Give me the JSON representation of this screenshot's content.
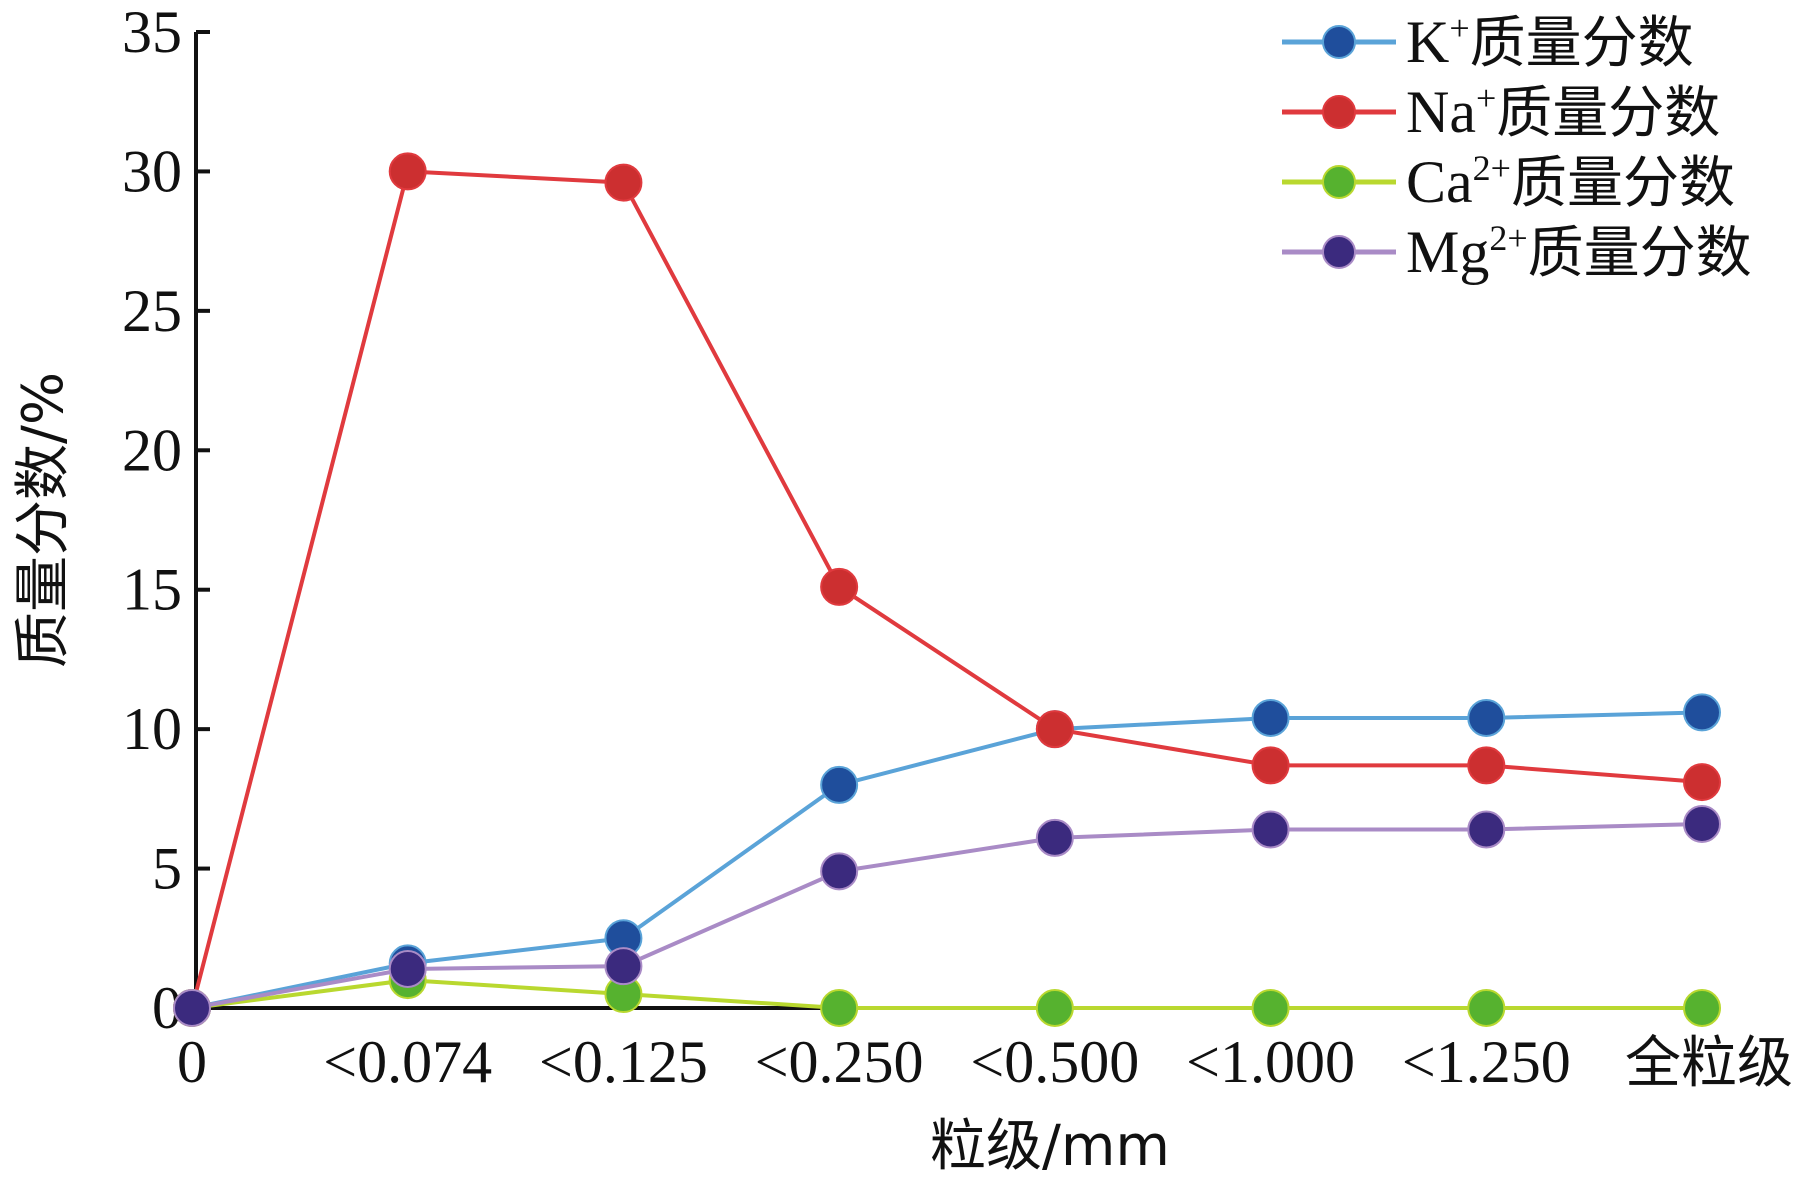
{
  "chart_data": {
    "type": "line",
    "title": "",
    "xlabel": "粒级/mm",
    "ylabel": "质量分数/%",
    "categories": [
      "0",
      "<0.074",
      "<0.125",
      "<0.250",
      "<0.500",
      "<1.000",
      "<1.250",
      "全粒级"
    ],
    "ylim": [
      0,
      35
    ],
    "yticks": [
      "0",
      "5",
      "10",
      "15",
      "20",
      "25",
      "30",
      "35"
    ],
    "grid": false,
    "legend_position": "top-right",
    "series": [
      {
        "name_base": "K",
        "name_sup": "+",
        "name_suffix": "质量分数",
        "color": "#5aa3d8",
        "marker_color": "#1f4e9c",
        "values": [
          0,
          1.6,
          2.5,
          8.0,
          10.0,
          10.4,
          10.4,
          10.6
        ]
      },
      {
        "name_base": "Na",
        "name_sup": "+",
        "name_suffix": "质量分数",
        "color": "#e03a3e",
        "marker_color": "#cc2f30",
        "values": [
          0,
          30.0,
          29.6,
          15.1,
          10.0,
          8.7,
          8.7,
          8.1
        ]
      },
      {
        "name_base": "Ca",
        "name_sup": "2+",
        "name_suffix": "质量分数",
        "color": "#b9d82f",
        "marker_color": "#56b22f",
        "values": [
          0,
          1.0,
          0.5,
          0.0,
          0.0,
          0.0,
          0.0,
          0.0
        ]
      },
      {
        "name_base": "Mg",
        "name_sup": "2+",
        "name_suffix": "质量分数",
        "color": "#a98bc6",
        "marker_color": "#3b2a7e",
        "values": [
          0,
          1.4,
          1.5,
          4.9,
          6.1,
          6.4,
          6.4,
          6.6
        ]
      }
    ]
  }
}
